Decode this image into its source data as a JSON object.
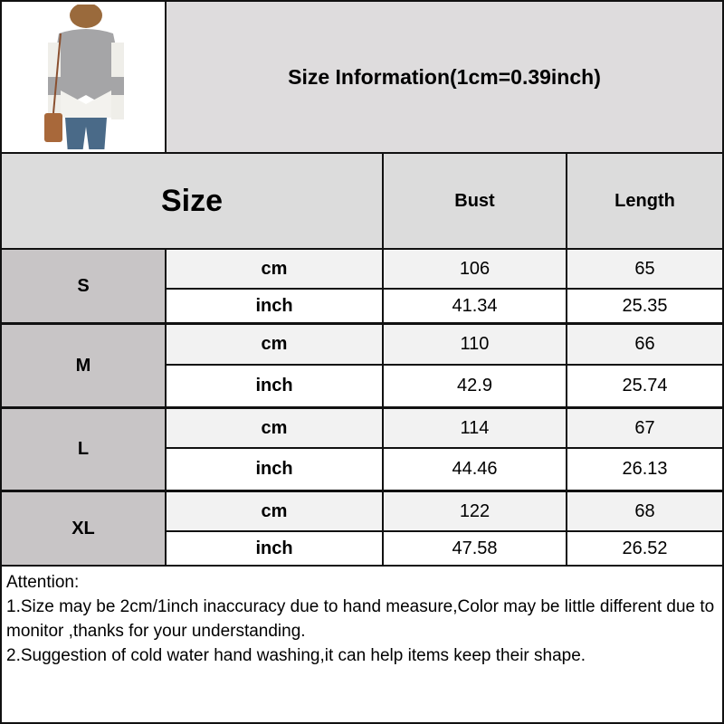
{
  "title": "Size Information(1cm=0.39inch)",
  "headers": {
    "size": "Size",
    "bust": "Bust",
    "length": "Length"
  },
  "rows": [
    {
      "size": "S",
      "cm": {
        "unit": "cm",
        "bust": "106",
        "length": "65"
      },
      "inch": {
        "unit": "inch",
        "bust": "41.34",
        "length": "25.35"
      }
    },
    {
      "size": "M",
      "cm": {
        "unit": "cm",
        "bust": "110",
        "length": "66"
      },
      "inch": {
        "unit": "inch",
        "bust": "42.9",
        "length": "25.74"
      }
    },
    {
      "size": "L",
      "cm": {
        "unit": "cm",
        "bust": "114",
        "length": "67"
      },
      "inch": {
        "unit": "inch",
        "bust": "44.46",
        "length": "26.13"
      }
    },
    {
      "size": "XL",
      "cm": {
        "unit": "cm",
        "bust": "122",
        "length": "68"
      },
      "inch": {
        "unit": "inch",
        "bust": "47.58",
        "length": "26.52"
      }
    }
  ],
  "attention": {
    "heading": "Attention:",
    "line1": "1.Size may be 2cm/1inch inaccuracy due to hand measure,Color may be little different due to monitor ,thanks for your understanding.",
    "line2": "2.Suggestion of cold water hand washing,it can help items keep their shape."
  },
  "colors": {
    "title_bg": "#dedcdd",
    "header_bg": "#dcdcdc",
    "size_col": "#c8c5c6",
    "cm_row": "#f2f2f2"
  }
}
